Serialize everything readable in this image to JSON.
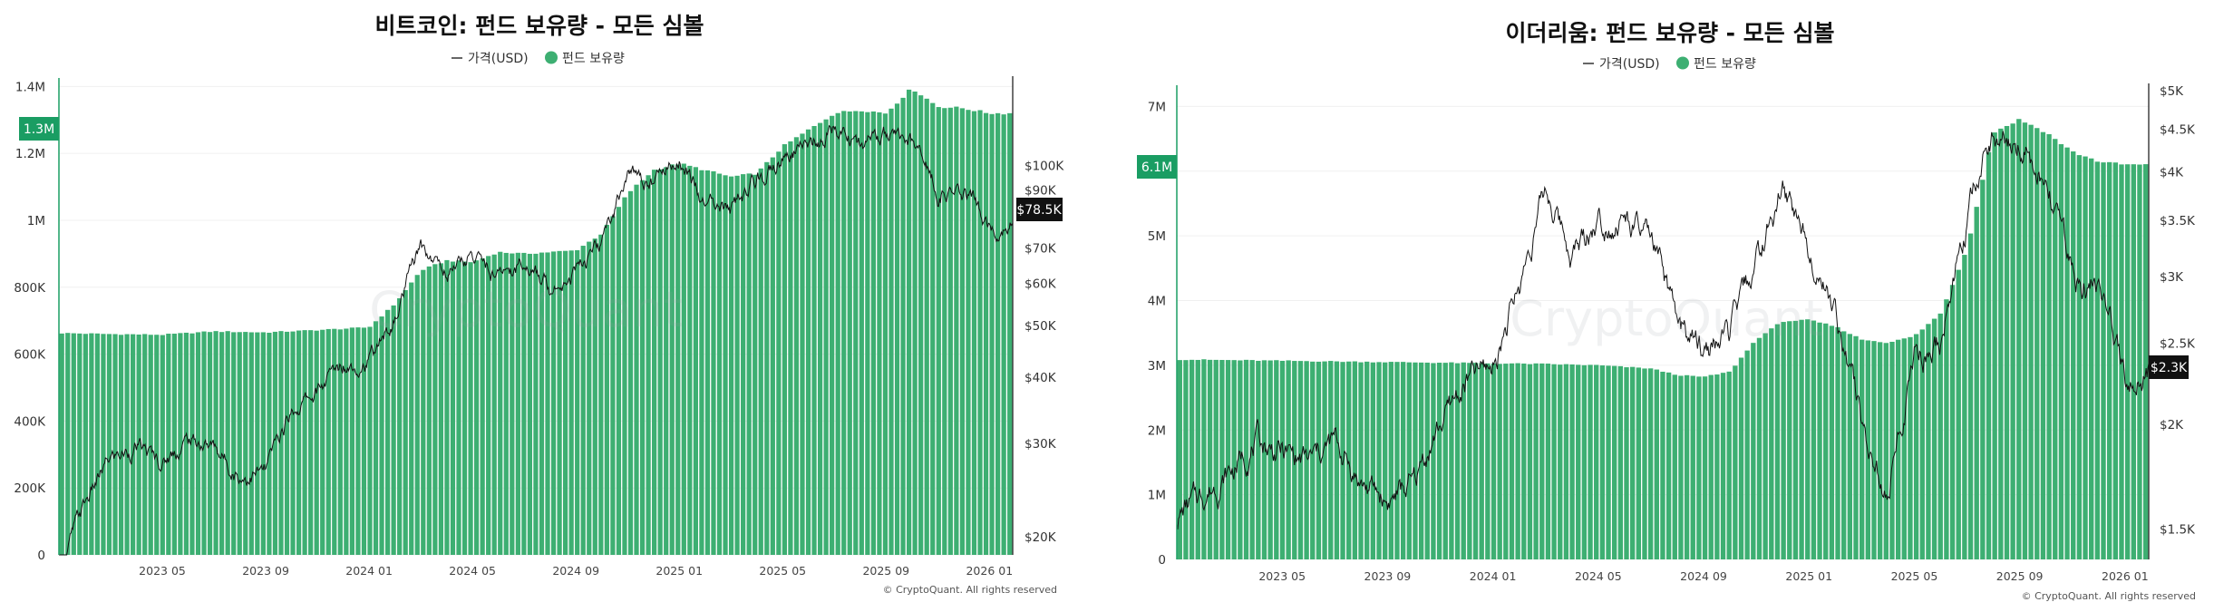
{
  "chart_data": [
    {
      "type": "bar+line",
      "title": "비트코인: 펀드 보유량 - 모든 심볼",
      "legend": {
        "line_label": "가격(USD)",
        "bar_label": "펀드 보유량",
        "placement": "top-center"
      },
      "bar_color": "#3daf72",
      "line_color": "#111111",
      "y_left": {
        "ticks": [
          "0",
          "200K",
          "400K",
          "600K",
          "800K",
          "1M",
          "1.2M",
          "1.4M"
        ],
        "tick_values": [
          0,
          200000,
          400000,
          600000,
          800000,
          1000000,
          1200000,
          1400000
        ],
        "range": [
          0,
          1420000
        ]
      },
      "y_right": {
        "scale": "log",
        "ticks": [
          "$20K",
          "$30K",
          "$40K",
          "$50K",
          "$60K",
          "$70K",
          "$90K",
          "$100K"
        ],
        "tick_values": [
          20000,
          30000,
          40000,
          50000,
          60000,
          70000,
          90000,
          100000
        ],
        "range": [
          18500,
          145000
        ]
      },
      "x": {
        "start": "2023-01",
        "end": "2026-01",
        "ticks": [
          "2023 05",
          "2023 09",
          "2024 01",
          "2024 05",
          "2024 09",
          "2025 01",
          "2025 05",
          "2025 09",
          "2026 01"
        ]
      },
      "current_holdings_label": "1.3M",
      "current_holdings_value": 1320000,
      "current_price_label": "$78.5K",
      "current_price_value": 78500,
      "holdings_series": [
        [
          "2023-01",
          663000
        ],
        [
          "2023-03",
          660000
        ],
        [
          "2023-05",
          658000
        ],
        [
          "2023-07",
          668000
        ],
        [
          "2023-09",
          665000
        ],
        [
          "2023-11",
          672000
        ],
        [
          "2024-01",
          680000
        ],
        [
          "2024-02",
          750000
        ],
        [
          "2024-03",
          850000
        ],
        [
          "2024-04",
          880000
        ],
        [
          "2024-05",
          875000
        ],
        [
          "2024-06",
          905000
        ],
        [
          "2024-07",
          900000
        ],
        [
          "2024-08",
          905000
        ],
        [
          "2024-09",
          910000
        ],
        [
          "2024-10",
          960000
        ],
        [
          "2024-11",
          1080000
        ],
        [
          "2024-12",
          1150000
        ],
        [
          "2025-01",
          1170000
        ],
        [
          "2025-02",
          1150000
        ],
        [
          "2025-03",
          1130000
        ],
        [
          "2025-04",
          1140000
        ],
        [
          "2025-05",
          1220000
        ],
        [
          "2025-06",
          1270000
        ],
        [
          "2025-07",
          1320000
        ],
        [
          "2025-08",
          1330000
        ],
        [
          "2025-09",
          1320000
        ],
        [
          "2025-10",
          1395000
        ],
        [
          "2025-11",
          1340000
        ],
        [
          "2025-12",
          1335000
        ],
        [
          "2026-01",
          1320000
        ]
      ],
      "price_series": [
        [
          "2023-01",
          17000
        ],
        [
          "2023-02",
          23000
        ],
        [
          "2023-03",
          28000
        ],
        [
          "2023-04",
          29500
        ],
        [
          "2023-05",
          27500
        ],
        [
          "2023-06",
          30500
        ],
        [
          "2023-07",
          29500
        ],
        [
          "2023-08",
          26000
        ],
        [
          "2023-09",
          26500
        ],
        [
          "2023-10",
          34500
        ],
        [
          "2023-11",
          37500
        ],
        [
          "2023-12",
          42500
        ],
        [
          "2024-01",
          43000
        ],
        [
          "2024-02",
          51000
        ],
        [
          "2024-03",
          70000
        ],
        [
          "2024-04",
          63000
        ],
        [
          "2024-05",
          68000
        ],
        [
          "2024-06",
          62000
        ],
        [
          "2024-07",
          66000
        ],
        [
          "2024-08",
          59000
        ],
        [
          "2024-09",
          64000
        ],
        [
          "2024-10",
          70000
        ],
        [
          "2024-11",
          96000
        ],
        [
          "2024-12",
          94000
        ],
        [
          "2025-01",
          104000
        ],
        [
          "2025-02",
          84000
        ],
        [
          "2025-03",
          82000
        ],
        [
          "2025-04",
          94000
        ],
        [
          "2025-05",
          104000
        ],
        [
          "2025-06",
          107000
        ],
        [
          "2025-07",
          118000
        ],
        [
          "2025-08",
          110000
        ],
        [
          "2025-09",
          114000
        ],
        [
          "2025-10",
          110000
        ],
        [
          "2025-11",
          90000
        ],
        [
          "2025-12",
          88000
        ],
        [
          "2026-01",
          78500
        ]
      ],
      "credit": "© CryptoQuant. All rights reserved",
      "watermark": "CryptoQuant"
    },
    {
      "type": "bar+line",
      "title": "이더리움: 펀드 보유량 - 모든 심볼",
      "legend": {
        "line_label": "가격(USD)",
        "bar_label": "펀드 보유량",
        "placement": "top-center"
      },
      "bar_color": "#3daf72",
      "line_color": "#111111",
      "y_left": {
        "ticks": [
          "0",
          "1M",
          "2M",
          "3M",
          "4M",
          "5M",
          "6M",
          "7M"
        ],
        "tick_values": [
          0,
          1000000,
          2000000,
          3000000,
          4000000,
          5000000,
          6000000,
          7000000
        ],
        "range": [
          0,
          7300000
        ]
      },
      "y_right": {
        "scale": "log",
        "ticks": [
          "$1.5K",
          "$2K",
          "$2.5K",
          "$3K",
          "$3.5K",
          "$4K",
          "$4.5K",
          "$5K"
        ],
        "tick_values": [
          1500,
          2000,
          2500,
          3000,
          3500,
          4000,
          4500,
          5000
        ],
        "range": [
          1380,
          5050
        ]
      },
      "x": {
        "start": "2023-01",
        "end": "2026-01",
        "ticks": [
          "2023 05",
          "2023 09",
          "2024 01",
          "2024 05",
          "2024 09",
          "2025 01",
          "2025 05",
          "2025 09",
          "2026 01"
        ]
      },
      "current_holdings_label": "6.1M",
      "current_holdings_value": 6100000,
      "current_price_label": "$2.3K",
      "current_price_value": 2300,
      "holdings_series": [
        [
          "2023-01",
          3090000
        ],
        [
          "2023-05",
          3070000
        ],
        [
          "2023-09",
          3050000
        ],
        [
          "2024-01",
          3030000
        ],
        [
          "2024-03",
          3020000
        ],
        [
          "2024-05",
          3000000
        ],
        [
          "2024-07",
          2950000
        ],
        [
          "2024-08",
          2850000
        ],
        [
          "2024-09",
          2820000
        ],
        [
          "2024-10",
          2900000
        ],
        [
          "2024-11",
          3400000
        ],
        [
          "2024-12",
          3680000
        ],
        [
          "2025-01",
          3700000
        ],
        [
          "2025-02",
          3600000
        ],
        [
          "2025-03",
          3400000
        ],
        [
          "2025-04",
          3350000
        ],
        [
          "2025-05",
          3450000
        ],
        [
          "2025-06",
          3800000
        ],
        [
          "2025-07",
          4800000
        ],
        [
          "2025-08",
          6600000
        ],
        [
          "2025-09",
          6800000
        ],
        [
          "2025-10",
          6600000
        ],
        [
          "2025-11",
          6300000
        ],
        [
          "2025-12",
          6150000
        ],
        [
          "2026-01",
          6100000
        ]
      ],
      "price_series": [
        [
          "2023-01",
          1550
        ],
        [
          "2023-02",
          1650
        ],
        [
          "2023-03",
          1750
        ],
        [
          "2023-04",
          1900
        ],
        [
          "2023-05",
          1850
        ],
        [
          "2023-06",
          1800
        ],
        [
          "2023-07",
          1900
        ],
        [
          "2023-08",
          1700
        ],
        [
          "2023-09",
          1620
        ],
        [
          "2023-10",
          1700
        ],
        [
          "2023-11",
          2000
        ],
        [
          "2023-12",
          2250
        ],
        [
          "2024-01",
          2350
        ],
        [
          "2024-02",
          2900
        ],
        [
          "2024-03",
          3800
        ],
        [
          "2024-04",
          3200
        ],
        [
          "2024-05",
          3500
        ],
        [
          "2024-06",
          3500
        ],
        [
          "2024-07",
          3300
        ],
        [
          "2024-08",
          2600
        ],
        [
          "2024-09",
          2450
        ],
        [
          "2024-10",
          2550
        ],
        [
          "2024-11",
          3100
        ],
        [
          "2024-12",
          3800
        ],
        [
          "2025-01",
          3300
        ],
        [
          "2025-02",
          2700
        ],
        [
          "2025-03",
          2000
        ],
        [
          "2025-04",
          1600
        ],
        [
          "2025-05",
          2400
        ],
        [
          "2025-06",
          2500
        ],
        [
          "2025-07",
          3500
        ],
        [
          "2025-08",
          4500
        ],
        [
          "2025-09",
          4300
        ],
        [
          "2025-10",
          3900
        ],
        [
          "2025-11",
          3000
        ],
        [
          "2025-12",
          2900
        ],
        [
          "2026-01",
          2300
        ]
      ],
      "credit": "© CryptoQuant. All rights reserved",
      "watermark": "CryptoQuant"
    }
  ]
}
